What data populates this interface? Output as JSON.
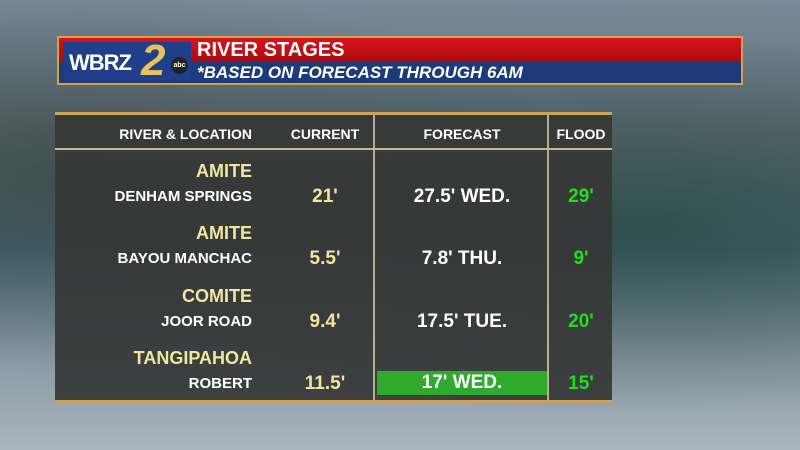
{
  "header": {
    "logo": "WBRZ 2 abc",
    "title": "RIVER STAGES",
    "subtitle": "*BASED ON FORECAST THROUGH 6AM"
  },
  "table": {
    "columns": [
      "RIVER & LOCATION",
      "CURRENT",
      "FORECAST",
      "FLOOD"
    ],
    "rows": [
      {
        "river": "AMITE",
        "location": "DENHAM SPRINGS",
        "current": "21'",
        "forecast": "27.5' WED.",
        "flood": "29'",
        "highlight": false
      },
      {
        "river": "AMITE",
        "location": "BAYOU MANCHAC",
        "current": "5.5'",
        "forecast": "7.8' THU.",
        "flood": "9'",
        "highlight": false
      },
      {
        "river": "COMITE",
        "location": "JOOR ROAD",
        "current": "9.4'",
        "forecast": "17.5' TUE.",
        "flood": "20'",
        "highlight": false
      },
      {
        "river": "TANGIPAHOA",
        "location": "ROBERT",
        "current": "11.5'",
        "forecast": "17' WED.",
        "flood": "15'",
        "highlight": true
      }
    ]
  },
  "colors": {
    "river_name": "#f0e6a0",
    "flood": "#22dd22",
    "highlight": "#2faa2f",
    "header_red": "#d8141c",
    "header_blue": "#1d3a7a"
  }
}
